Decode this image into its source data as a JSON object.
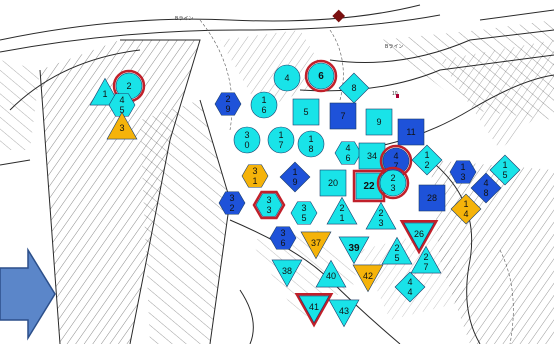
{
  "colors": {
    "cyan": "#19e3e8",
    "blue": "#1e52d9",
    "orange": "#f5b30a",
    "red_outline": "#c0202a",
    "arrow_fill": "#5b86c9",
    "arrow_stroke": "#2c4f8a",
    "line": "#2a2a2a",
    "marker_maroon": "#7a1010"
  },
  "map_text": {
    "road_label_1": "Bライン",
    "road_label_2": "Bライン",
    "small_note": "10"
  },
  "markers": [
    {
      "id": "2",
      "shape": "circle",
      "color": "cyan",
      "outline": "red",
      "bold": false
    },
    {
      "id": "1",
      "shape": "triangle-up",
      "color": "cyan",
      "outline": "none",
      "bold": false
    },
    {
      "id": "4 5",
      "shape": "hexagon",
      "color": "cyan",
      "outline": "none",
      "bold": false
    },
    {
      "id": "3",
      "shape": "triangle-up",
      "color": "orange",
      "outline": "none",
      "bold": false
    },
    {
      "id": "2 9",
      "shape": "hexagon",
      "color": "blue",
      "outline": "none",
      "bold": false
    },
    {
      "id": "4",
      "shape": "circle",
      "color": "cyan",
      "outline": "none",
      "bold": false
    },
    {
      "id": "6",
      "shape": "circle",
      "color": "cyan",
      "outline": "red",
      "bold": true
    },
    {
      "id": "8",
      "shape": "diamond",
      "color": "cyan",
      "outline": "none",
      "bold": false
    },
    {
      "id": "1 6",
      "shape": "circle",
      "color": "cyan",
      "outline": "none",
      "bold": false
    },
    {
      "id": "5",
      "shape": "square",
      "color": "cyan",
      "outline": "none",
      "bold": false
    },
    {
      "id": "7",
      "shape": "square",
      "color": "blue",
      "outline": "none",
      "bold": false
    },
    {
      "id": "9",
      "shape": "square",
      "color": "cyan",
      "outline": "none",
      "bold": false
    },
    {
      "id": "11",
      "shape": "square",
      "color": "blue",
      "outline": "none",
      "bold": false
    },
    {
      "id": "3 0",
      "shape": "circle",
      "color": "cyan",
      "outline": "none",
      "bold": false
    },
    {
      "id": "1 7",
      "shape": "circle",
      "color": "cyan",
      "outline": "none",
      "bold": false
    },
    {
      "id": "1 8",
      "shape": "circle",
      "color": "cyan",
      "outline": "none",
      "bold": false
    },
    {
      "id": "4 6",
      "shape": "hexagon",
      "color": "cyan",
      "outline": "none",
      "bold": false
    },
    {
      "id": "34",
      "shape": "square",
      "color": "cyan",
      "outline": "none",
      "bold": false
    },
    {
      "id": "4 7",
      "shape": "circle",
      "color": "blue",
      "outline": "red",
      "bold": false
    },
    {
      "id": "1 2",
      "shape": "diamond",
      "color": "cyan",
      "outline": "none",
      "bold": false
    },
    {
      "id": "1 3",
      "shape": "hexagon",
      "color": "blue",
      "outline": "none",
      "bold": false
    },
    {
      "id": "1 5",
      "shape": "diamond",
      "color": "cyan",
      "outline": "none",
      "bold": false
    },
    {
      "id": "3 1",
      "shape": "hexagon",
      "color": "orange",
      "outline": "none",
      "bold": false
    },
    {
      "id": "1 9",
      "shape": "diamond",
      "color": "blue",
      "outline": "none",
      "bold": false
    },
    {
      "id": "20",
      "shape": "square",
      "color": "cyan",
      "outline": "none",
      "bold": false
    },
    {
      "id": "22",
      "shape": "square",
      "color": "cyan",
      "outline": "red",
      "bold": true
    },
    {
      "id": "2 3",
      "shape": "circle",
      "color": "cyan",
      "outline": "red",
      "bold": false
    },
    {
      "id": "28",
      "shape": "square",
      "color": "blue",
      "outline": "none",
      "bold": false
    },
    {
      "id": "4 8",
      "shape": "diamond",
      "color": "blue",
      "outline": "none",
      "bold": false
    },
    {
      "id": "1 4",
      "shape": "diamond",
      "color": "orange",
      "outline": "none",
      "bold": false
    },
    {
      "id": "3 2",
      "shape": "hexagon",
      "color": "blue",
      "outline": "none",
      "bold": false
    },
    {
      "id": "3 3",
      "shape": "hexagon",
      "color": "cyan",
      "outline": "red",
      "bold": false
    },
    {
      "id": "3 5",
      "shape": "hexagon",
      "color": "cyan",
      "outline": "none",
      "bold": false
    },
    {
      "id": "2 1",
      "shape": "triangle-up",
      "color": "cyan",
      "outline": "none",
      "bold": false
    },
    {
      "id": "2 3",
      "shape": "triangle-up",
      "color": "cyan",
      "outline": "none",
      "bold": false
    },
    {
      "id": "3 6",
      "shape": "hexagon",
      "color": "blue",
      "outline": "none",
      "bold": false
    },
    {
      "id": "37",
      "shape": "triangle-down",
      "color": "orange",
      "outline": "none",
      "bold": false
    },
    {
      "id": "39",
      "shape": "triangle-down",
      "color": "cyan",
      "outline": "none",
      "bold": true
    },
    {
      "id": "26",
      "shape": "triangle-down",
      "color": "cyan",
      "outline": "red",
      "bold": false
    },
    {
      "id": "2 5",
      "shape": "triangle-up",
      "color": "cyan",
      "outline": "none",
      "bold": false
    },
    {
      "id": "2 7",
      "shape": "triangle-up",
      "color": "cyan",
      "outline": "none",
      "bold": false
    },
    {
      "id": "38",
      "shape": "triangle-down",
      "color": "cyan",
      "outline": "none",
      "bold": false
    },
    {
      "id": "40",
      "shape": "triangle-up",
      "color": "cyan",
      "outline": "none",
      "bold": false
    },
    {
      "id": "42",
      "shape": "triangle-down",
      "color": "orange",
      "outline": "none",
      "bold": false
    },
    {
      "id": "4 4",
      "shape": "diamond",
      "color": "cyan",
      "outline": "none",
      "bold": false
    },
    {
      "id": "41",
      "shape": "triangle-down",
      "color": "cyan",
      "outline": "red",
      "bold": false
    },
    {
      "id": "43",
      "shape": "triangle-down",
      "color": "cyan",
      "outline": "none",
      "bold": false
    }
  ]
}
